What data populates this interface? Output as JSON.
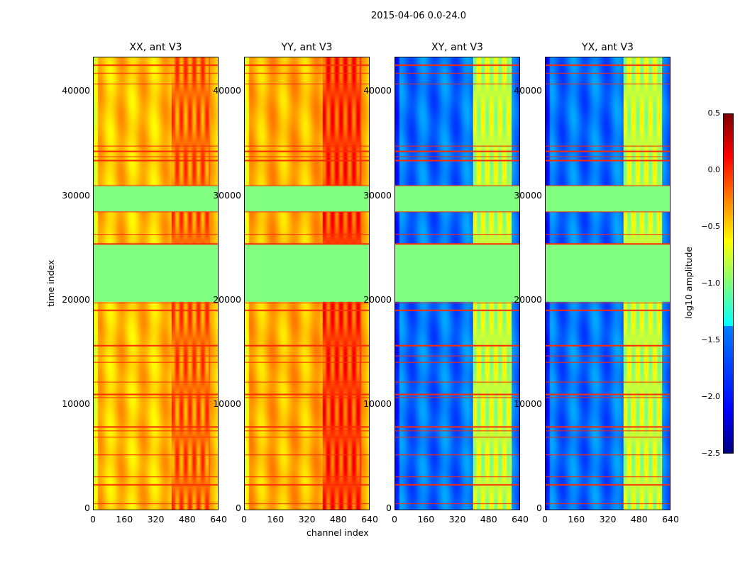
{
  "chart_data": {
    "type": "heatmap",
    "title": "2015-04-06 0.0-24.0",
    "xlabel": "channel index",
    "ylabel": "time index",
    "xlim": [
      0,
      640
    ],
    "ylim": [
      0,
      43500
    ],
    "xticks": [
      "0",
      "160",
      "320",
      "480",
      "640"
    ],
    "yticks": [
      "0",
      "10000",
      "20000",
      "30000",
      "40000"
    ],
    "yticks_values": [
      0,
      10000,
      20000,
      30000,
      40000
    ],
    "panels": [
      {
        "title": "XX, ant V3",
        "base": -0.45,
        "high_channels_value": -0.2
      },
      {
        "title": "YY, ant V3",
        "base": -0.4,
        "high_channels_value": -0.05
      },
      {
        "title": "XY, ant V3",
        "base": -1.8,
        "high_channels_value": -0.8
      },
      {
        "title": "YX, ant V3",
        "base": -1.8,
        "high_channels_value": -0.8
      }
    ],
    "high_channel_range": [
      400,
      600
    ],
    "flagged_time_ranges": [
      [
        20000,
        25500
      ],
      [
        28700,
        31200
      ]
    ],
    "flagged_value": -1.0,
    "bright_time_lines": [
      600,
      2400,
      3200,
      5300,
      7000,
      7600,
      8000,
      10800,
      11100,
      12300,
      14200,
      14800,
      15800,
      19200,
      19900,
      25600,
      26500,
      28700,
      31200,
      33600,
      34000,
      34500,
      35000,
      41000,
      42000,
      42800
    ],
    "colorbar": {
      "label": "log10 amplitude",
      "ticks": [
        "0.5",
        "0.0",
        "−0.5",
        "−1.0",
        "−1.5",
        "−2.0",
        "−2.5"
      ],
      "vmin": -2.5,
      "vmax": 0.5,
      "colormap": "jet"
    }
  }
}
